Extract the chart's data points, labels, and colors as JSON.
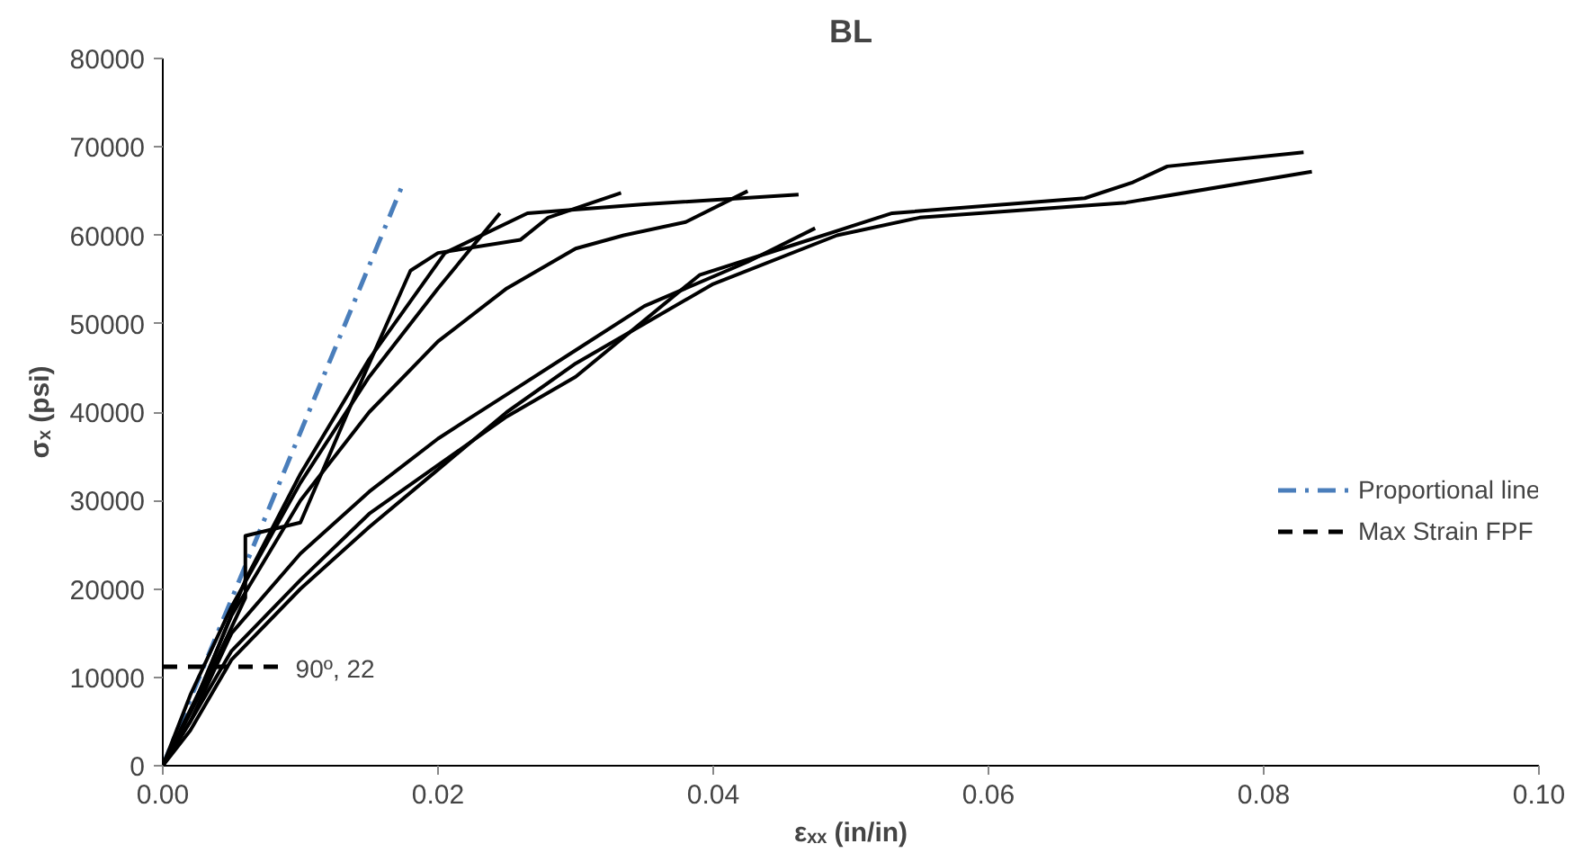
{
  "chart_data": {
    "type": "line",
    "title": "BL",
    "xlabel": "εₓₓ (in/in)",
    "ylabel": "σₓ (psi)",
    "xlim": [
      0,
      0.1
    ],
    "xticks": [
      {
        "value": 0,
        "label": "0.00"
      },
      {
        "value": 0.02,
        "label": "0.02"
      },
      {
        "value": 0.04,
        "label": "0.04"
      },
      {
        "value": 0.06,
        "label": "0.06"
      },
      {
        "value": 0.08,
        "label": "0.08"
      },
      {
        "value": 0.1,
        "label": "0.10"
      }
    ],
    "ylim": [
      0,
      80000
    ],
    "yticks": [
      0,
      10000,
      20000,
      30000,
      40000,
      50000,
      60000,
      70000,
      80000
    ],
    "grid": false,
    "legend": "right",
    "marker": "none",
    "series": [
      {
        "name": "Proportional line",
        "color": "#4a7ebb",
        "line_style": "dashdot",
        "x": [
          0,
          0.0175
        ],
        "values": [
          0,
          66000
        ]
      },
      {
        "name": "Max Strain FPF",
        "color": "#000000",
        "line_style": "dashed",
        "x": [
          0,
          0.0086
        ],
        "values": [
          11200,
          11200
        ]
      },
      {
        "color": "#000000",
        "x": [
          0,
          0.002,
          0.005,
          0.01,
          0.015,
          0.02,
          0.0245
        ],
        "values": [
          0,
          8000,
          18000,
          32000,
          44000,
          54000,
          62500
        ]
      },
      {
        "color": "#000000",
        "x": [
          0,
          0.003,
          0.006,
          0.006,
          0.01,
          0.014,
          0.018,
          0.02,
          0.026,
          0.028,
          0.0333
        ],
        "values": [
          0,
          9000,
          19000,
          26000,
          27500,
          42000,
          56000,
          58000,
          59500,
          62000,
          64800
        ]
      },
      {
        "color": "#000000",
        "x": [
          0,
          0.003,
          0.006,
          0.01,
          0.015,
          0.0205,
          0.0265,
          0.035,
          0.0462
        ],
        "values": [
          0,
          9500,
          21000,
          33000,
          46000,
          58000,
          62500,
          63500,
          64600
        ]
      },
      {
        "color": "#000000",
        "x": [
          0,
          0.002,
          0.005,
          0.01,
          0.015,
          0.02,
          0.025,
          0.03,
          0.0335,
          0.038,
          0.0425
        ],
        "values": [
          0,
          6000,
          17000,
          30000,
          40000,
          48000,
          54000,
          58500,
          60000,
          61500,
          65000
        ]
      },
      {
        "color": "#000000",
        "x": [
          0,
          0.002,
          0.005,
          0.01,
          0.015,
          0.02,
          0.025,
          0.03,
          0.035,
          0.0425,
          0.0474
        ],
        "values": [
          0,
          5000,
          15000,
          24000,
          31000,
          37000,
          42000,
          47000,
          52000,
          57000,
          60800
        ]
      },
      {
        "color": "#000000",
        "x": [
          0,
          0.002,
          0.005,
          0.01,
          0.015,
          0.02,
          0.025,
          0.03,
          0.039,
          0.045,
          0.05,
          0.053,
          0.067,
          0.0705,
          0.073,
          0.0829
        ],
        "values": [
          0,
          5000,
          13000,
          21000,
          28500,
          34000,
          39500,
          44000,
          55500,
          58500,
          61000,
          62500,
          64200,
          66000,
          67800,
          69400
        ]
      },
      {
        "color": "#000000",
        "x": [
          0,
          0.002,
          0.005,
          0.01,
          0.015,
          0.02,
          0.025,
          0.03,
          0.035,
          0.04,
          0.049,
          0.055,
          0.07,
          0.0835
        ],
        "values": [
          0,
          4000,
          12000,
          20000,
          27000,
          33500,
          40000,
          45500,
          50000,
          54500,
          60000,
          62000,
          63700,
          67200
        ]
      }
    ],
    "annotations": [
      {
        "text": "90º, 22",
        "x": 0.0086,
        "y": 11200
      }
    ]
  }
}
